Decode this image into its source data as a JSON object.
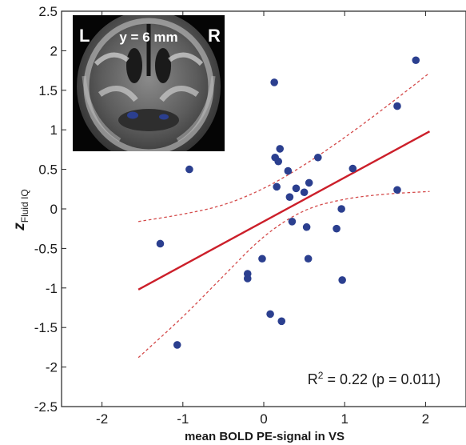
{
  "chart_data": {
    "type": "scatter",
    "xlabel": "mean BOLD PE-signal in VS",
    "ylabel": "z",
    "ylabel_subscript": "Fluid IQ",
    "xlim": [
      -2.5,
      2.5
    ],
    "ylim": [
      -2.5,
      2.5
    ],
    "x_ticks": [
      "-2",
      "-1",
      "0",
      "1",
      "2"
    ],
    "y_ticks": [
      "2.5",
      "2",
      "1.5",
      "1",
      "0.5",
      "0",
      "-0.5",
      "-1",
      "-1.5",
      "-2",
      "-2.5"
    ],
    "x_tick_values": [
      -2,
      -1,
      0,
      1,
      2
    ],
    "y_tick_values": [
      2.5,
      2,
      1.5,
      1,
      0.5,
      0,
      -0.5,
      -1,
      -1.5,
      -2,
      -2.5
    ],
    "grid": false,
    "points": [
      {
        "x": -1.28,
        "y": -0.44
      },
      {
        "x": -1.07,
        "y": -1.72
      },
      {
        "x": -0.92,
        "y": 0.5
      },
      {
        "x": -0.2,
        "y": -0.82
      },
      {
        "x": -0.2,
        "y": -0.88
      },
      {
        "x": -0.02,
        "y": -0.63
      },
      {
        "x": 0.08,
        "y": -1.33
      },
      {
        "x": 0.13,
        "y": 1.6
      },
      {
        "x": 0.14,
        "y": 0.65
      },
      {
        "x": 0.16,
        "y": 0.28
      },
      {
        "x": 0.18,
        "y": 0.6
      },
      {
        "x": 0.2,
        "y": 0.76
      },
      {
        "x": 0.22,
        "y": -1.42
      },
      {
        "x": 0.3,
        "y": 0.48
      },
      {
        "x": 0.32,
        "y": 0.15
      },
      {
        "x": 0.35,
        "y": -0.16
      },
      {
        "x": 0.4,
        "y": 0.26
      },
      {
        "x": 0.5,
        "y": 0.21
      },
      {
        "x": 0.53,
        "y": -0.23
      },
      {
        "x": 0.55,
        "y": -0.63
      },
      {
        "x": 0.56,
        "y": 0.33
      },
      {
        "x": 0.67,
        "y": 0.65
      },
      {
        "x": 0.9,
        "y": -0.25
      },
      {
        "x": 0.96,
        "y": 0.0
      },
      {
        "x": 0.97,
        "y": -0.9
      },
      {
        "x": 1.1,
        "y": 0.51
      },
      {
        "x": 1.65,
        "y": 1.3
      },
      {
        "x": 1.65,
        "y": 0.24
      },
      {
        "x": 1.88,
        "y": 1.88
      }
    ],
    "fit_line": {
      "x": [
        -1.55,
        2.05
      ],
      "y": [
        -1.02,
        0.98
      ]
    },
    "ci_upper": {
      "x": [
        -1.55,
        -1.0,
        -0.5,
        0.0,
        0.5,
        1.0,
        1.5,
        2.05
      ],
      "y": [
        -0.16,
        -0.07,
        0.04,
        0.25,
        0.55,
        0.9,
        1.28,
        1.72
      ]
    },
    "ci_lower": {
      "x": [
        -1.55,
        -1.0,
        -0.5,
        0.0,
        0.5,
        1.0,
        1.5,
        2.05
      ],
      "y": [
        -1.88,
        -1.37,
        -0.85,
        -0.33,
        0.0,
        0.13,
        0.19,
        0.22
      ]
    },
    "annotation": {
      "prefix": "R",
      "superscript": "2",
      "text": " = 0.22 (p = 0.011)"
    },
    "colors": {
      "points": "#2b3f8f",
      "fit": "#cc1f2a",
      "ci": "#d44a4a",
      "axis": "#222222"
    }
  },
  "inset": {
    "label_left": "L",
    "label_center": "y = 6 mm",
    "label_right": "R",
    "blob_color": "#2b3f8f"
  }
}
